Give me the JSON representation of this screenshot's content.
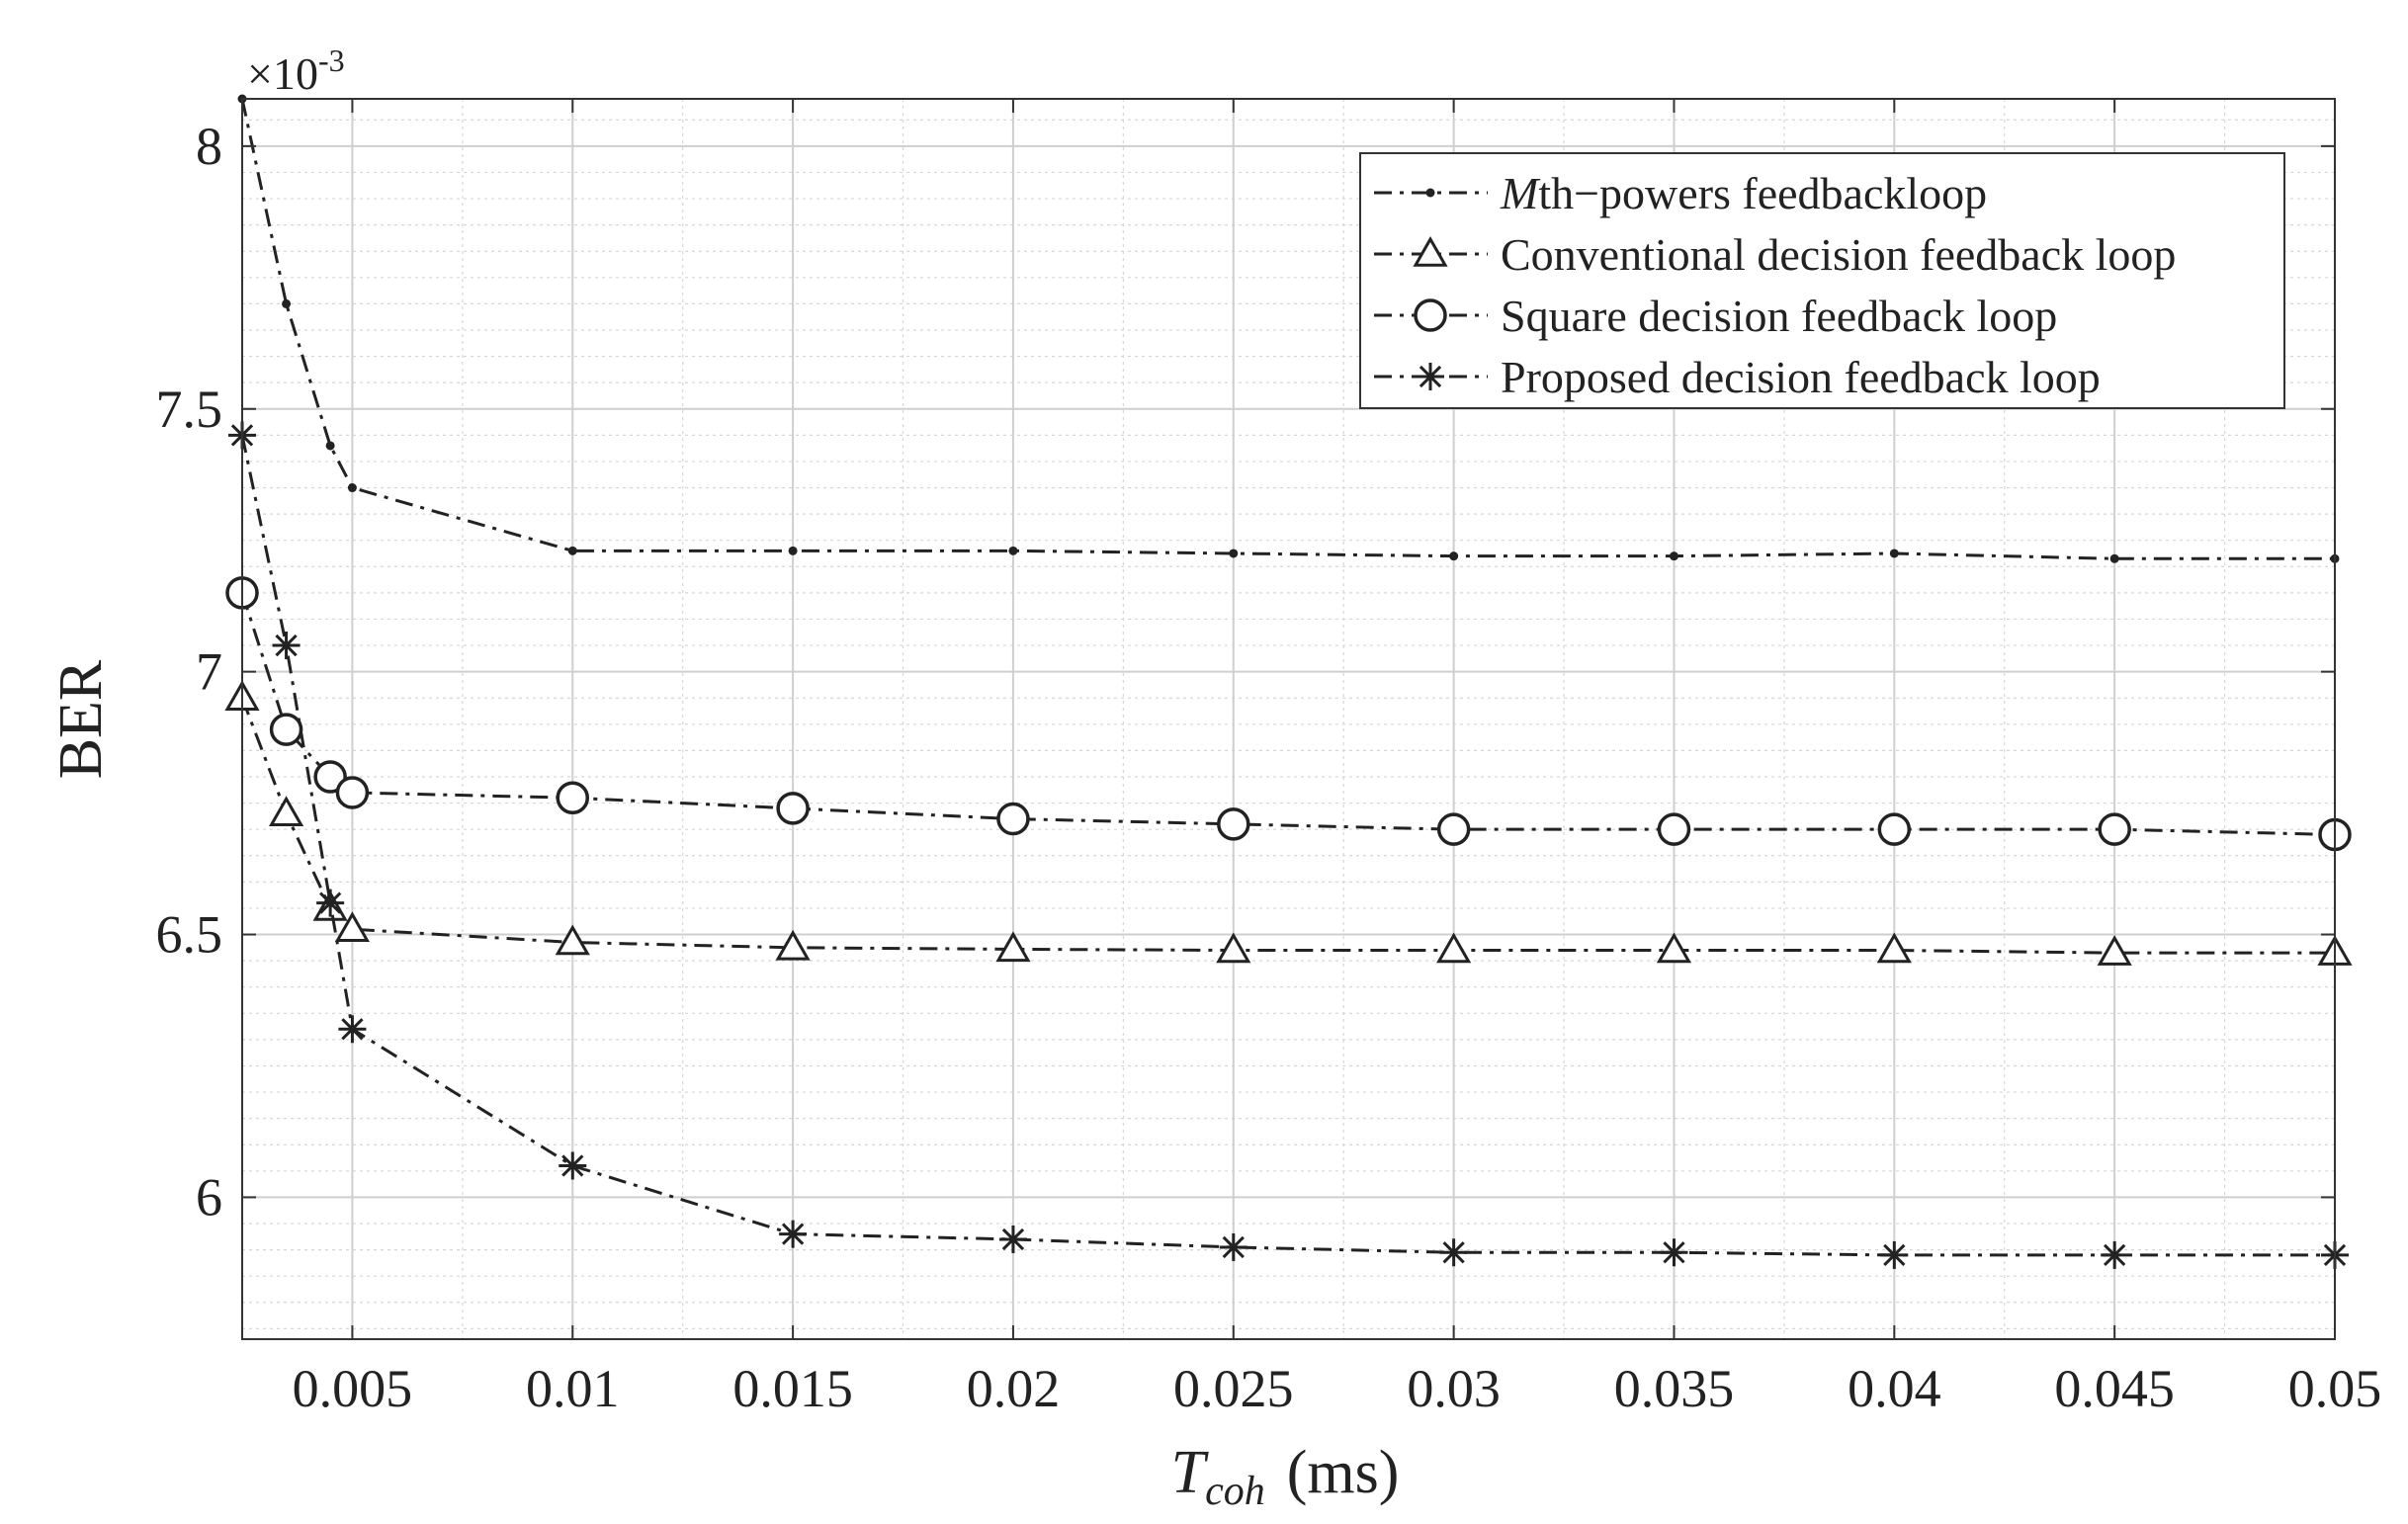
{
  "chart_data": {
    "type": "line",
    "title": "",
    "xlabel": {
      "main": "T",
      "sub": "coh",
      "unit": "(ms)"
    },
    "ylabel": "BER",
    "y_exponent_label": {
      "base": "×10",
      "exp": "-3"
    },
    "xlim": [
      0.0025,
      0.05
    ],
    "ylim": [
      5.73,
      8.09
    ],
    "x_ticks": [
      0.005,
      0.01,
      0.015,
      0.02,
      0.025,
      0.03,
      0.035,
      0.04,
      0.045,
      0.05
    ],
    "x_tick_labels": [
      "0.005",
      "0.01",
      "0.015",
      "0.02",
      "0.025",
      "0.03",
      "0.035",
      "0.04",
      "0.045",
      "0.05"
    ],
    "y_ticks": [
      6,
      6.5,
      7,
      7.5,
      8
    ],
    "y_tick_labels": [
      "6",
      "6.5",
      "7",
      "7.5",
      "8"
    ],
    "grid": true,
    "minor_grid": true,
    "legend_position": "top-right",
    "series": [
      {
        "name": "Mth−powers feedbackloop",
        "name_italic_prefix": "M",
        "name_rest": "th−powers feedbackloop",
        "marker": "dot",
        "x": [
          0.0025,
          0.0035,
          0.0045,
          0.005,
          0.01,
          0.015,
          0.02,
          0.025,
          0.03,
          0.035,
          0.04,
          0.045,
          0.05
        ],
        "values": [
          8.09,
          7.7,
          7.43,
          7.35,
          7.23,
          7.23,
          7.23,
          7.225,
          7.22,
          7.22,
          7.225,
          7.215,
          7.215
        ]
      },
      {
        "name": "Conventional decision feedback loop",
        "marker": "triangle",
        "x": [
          0.0025,
          0.0035,
          0.0045,
          0.005,
          0.01,
          0.015,
          0.02,
          0.025,
          0.03,
          0.035,
          0.04,
          0.045,
          0.05
        ],
        "values": [
          6.95,
          6.73,
          6.55,
          6.51,
          6.485,
          6.475,
          6.472,
          6.47,
          6.47,
          6.47,
          6.47,
          6.465,
          6.465
        ]
      },
      {
        "name": "Square decision feedback loop",
        "marker": "circle",
        "x": [
          0.0025,
          0.0035,
          0.0045,
          0.005,
          0.01,
          0.015,
          0.02,
          0.025,
          0.03,
          0.035,
          0.04,
          0.045,
          0.05
        ],
        "values": [
          7.15,
          6.89,
          6.8,
          6.77,
          6.76,
          6.74,
          6.72,
          6.71,
          6.7,
          6.7,
          6.7,
          6.7,
          6.69
        ]
      },
      {
        "name": "Proposed decision feedback loop",
        "marker": "asterisk",
        "x": [
          0.0025,
          0.0035,
          0.0045,
          0.005,
          0.01,
          0.015,
          0.02,
          0.025,
          0.03,
          0.035,
          0.04,
          0.045,
          0.05
        ],
        "values": [
          7.45,
          7.05,
          6.56,
          6.32,
          6.06,
          5.93,
          5.92,
          5.905,
          5.895,
          5.895,
          5.89,
          5.89,
          5.89
        ]
      }
    ]
  }
}
